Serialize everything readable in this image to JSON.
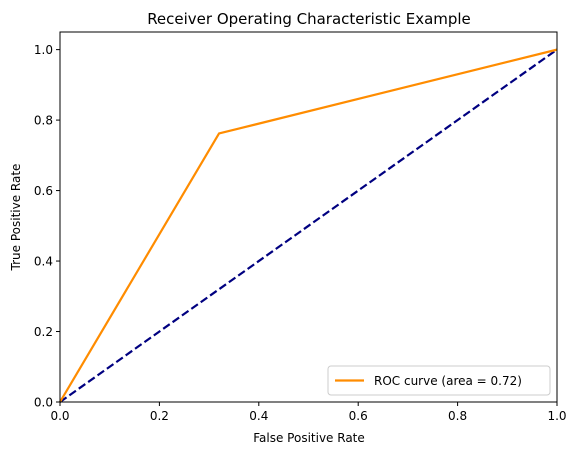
{
  "chart_data": {
    "type": "line",
    "title": "Receiver Operating Characteristic Example",
    "xlabel": "False Positive Rate",
    "ylabel": "True Positive Rate",
    "xlim": [
      0.0,
      1.0
    ],
    "ylim": [
      0.0,
      1.05
    ],
    "x_ticks": [
      0.0,
      0.2,
      0.4,
      0.6,
      0.8,
      1.0
    ],
    "y_ticks": [
      0.0,
      0.2,
      0.4,
      0.6,
      0.8,
      1.0
    ],
    "x_tick_labels": [
      "0.0",
      "0.2",
      "0.4",
      "0.6",
      "0.8",
      "1.0"
    ],
    "y_tick_labels": [
      "0.0",
      "0.2",
      "0.4",
      "0.6",
      "0.8",
      "1.0"
    ],
    "grid": false,
    "legend_placement": "lower-right",
    "series": [
      {
        "name": "ROC curve (area = 0.72)",
        "color": "#ff8c00",
        "line_style": "solid",
        "x": [
          0.0,
          0.32,
          1.0
        ],
        "y": [
          0.0,
          0.762,
          1.0
        ]
      },
      {
        "color": "#000080",
        "line_style": "dashed",
        "x": [
          0.0,
          1.0
        ],
        "y": [
          0.0,
          1.0
        ]
      }
    ]
  }
}
